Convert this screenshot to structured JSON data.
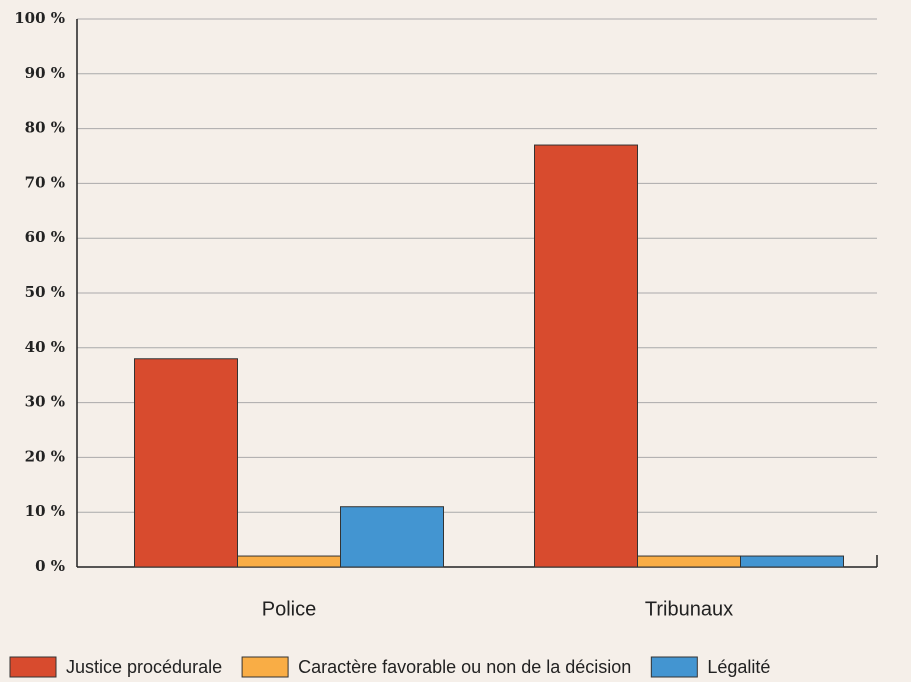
{
  "chart_data": {
    "type": "bar",
    "categories": [
      "Police",
      "Tribunaux"
    ],
    "series": [
      {
        "name": "Justice procédurale",
        "color": "#d84b2e",
        "values": [
          38,
          77
        ]
      },
      {
        "name": "Caractère favorable ou non de la décision",
        "color": "#f9ad45",
        "values": [
          2,
          2
        ]
      },
      {
        "name": "Légalité",
        "color": "#4395d1",
        "values": [
          11,
          2
        ]
      }
    ],
    "ylim": [
      0,
      100
    ],
    "yticks": [
      {
        "value": 0,
        "label": "0 %"
      },
      {
        "value": 10,
        "label": "10 %"
      },
      {
        "value": 20,
        "label": "20 %"
      },
      {
        "value": 30,
        "label": "30 %"
      },
      {
        "value": 40,
        "label": "40 %"
      },
      {
        "value": 50,
        "label": "50 %"
      },
      {
        "value": 60,
        "label": "60 %"
      },
      {
        "value": 70,
        "label": "70 %"
      },
      {
        "value": 80,
        "label": "80 %"
      },
      {
        "value": 90,
        "label": "90 %"
      },
      {
        "value": 100,
        "label": "100 %"
      }
    ],
    "grid": true,
    "legend": "bottom"
  }
}
